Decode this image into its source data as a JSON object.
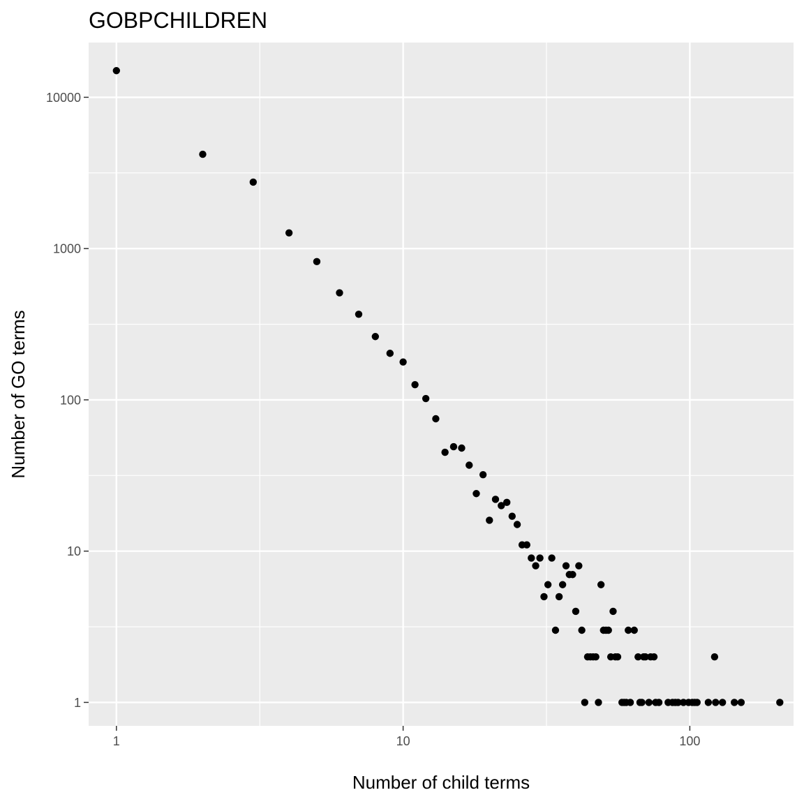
{
  "chart_data": {
    "type": "scatter",
    "title": "GOBPCHILDREN",
    "xlabel": "Number of child terms",
    "ylabel": "Number of GO terms",
    "x_scale": "log10",
    "y_scale": "log10",
    "xlim": [
      0.8,
      230
    ],
    "ylim": [
      0.7,
      23000
    ],
    "x_ticks": [
      1,
      10,
      100
    ],
    "x_tick_labels": [
      "1",
      "10",
      "100"
    ],
    "y_ticks": [
      1,
      10,
      100,
      1000,
      10000
    ],
    "y_tick_labels": [
      "1",
      "10",
      "100",
      "1000",
      "10000"
    ],
    "grid": true,
    "legend": "none",
    "colors": {
      "panel": "#ebebeb",
      "grid": "#ffffff",
      "point": "#000000",
      "tick_text": "#4d4d4d",
      "tick_mark": "#333333"
    },
    "points": [
      [
        1,
        15000
      ],
      [
        2,
        4200
      ],
      [
        3,
        2750
      ],
      [
        4,
        1270
      ],
      [
        5,
        820
      ],
      [
        6,
        510
      ],
      [
        7,
        368
      ],
      [
        8,
        262
      ],
      [
        9,
        203
      ],
      [
        10,
        178
      ],
      [
        11,
        126
      ],
      [
        12,
        102
      ],
      [
        13,
        75
      ],
      [
        14,
        45
      ],
      [
        15,
        49
      ],
      [
        16,
        48
      ],
      [
        17,
        37
      ],
      [
        18,
        24
      ],
      [
        19,
        32
      ],
      [
        20,
        16
      ],
      [
        21,
        22
      ],
      [
        22,
        20
      ],
      [
        23,
        21
      ],
      [
        24,
        17
      ],
      [
        25,
        15
      ],
      [
        26,
        11
      ],
      [
        27,
        11
      ],
      [
        28,
        9
      ],
      [
        29,
        8
      ],
      [
        30,
        9
      ],
      [
        31,
        5
      ],
      [
        32,
        6
      ],
      [
        33,
        9
      ],
      [
        34,
        3
      ],
      [
        35,
        5
      ],
      [
        36,
        6
      ],
      [
        37,
        8
      ],
      [
        38,
        7
      ],
      [
        39,
        7
      ],
      [
        40,
        4
      ],
      [
        41,
        8
      ],
      [
        42,
        3
      ],
      [
        43,
        1
      ],
      [
        44,
        2
      ],
      [
        45,
        2
      ],
      [
        46,
        2
      ],
      [
        47,
        2
      ],
      [
        48,
        1
      ],
      [
        49,
        6
      ],
      [
        50,
        3
      ],
      [
        51,
        3
      ],
      [
        52,
        3
      ],
      [
        53,
        2
      ],
      [
        54,
        4
      ],
      [
        55,
        2
      ],
      [
        56,
        2
      ],
      [
        58,
        1
      ],
      [
        59,
        1
      ],
      [
        60,
        1
      ],
      [
        61,
        3
      ],
      [
        62,
        1
      ],
      [
        64,
        3
      ],
      [
        66,
        2
      ],
      [
        67,
        1
      ],
      [
        68,
        1
      ],
      [
        69,
        2
      ],
      [
        70,
        2
      ],
      [
        72,
        1
      ],
      [
        73,
        2
      ],
      [
        75,
        2
      ],
      [
        76,
        1
      ],
      [
        78,
        1
      ],
      [
        84,
        1
      ],
      [
        87,
        1
      ],
      [
        89,
        1
      ],
      [
        91,
        1
      ],
      [
        95,
        1
      ],
      [
        99,
        1
      ],
      [
        102,
        1
      ],
      [
        104,
        1
      ],
      [
        106,
        1
      ],
      [
        116,
        1
      ],
      [
        122,
        2
      ],
      [
        123,
        1
      ],
      [
        130,
        1
      ],
      [
        143,
        1
      ],
      [
        151,
        1
      ],
      [
        206,
        1
      ]
    ]
  }
}
